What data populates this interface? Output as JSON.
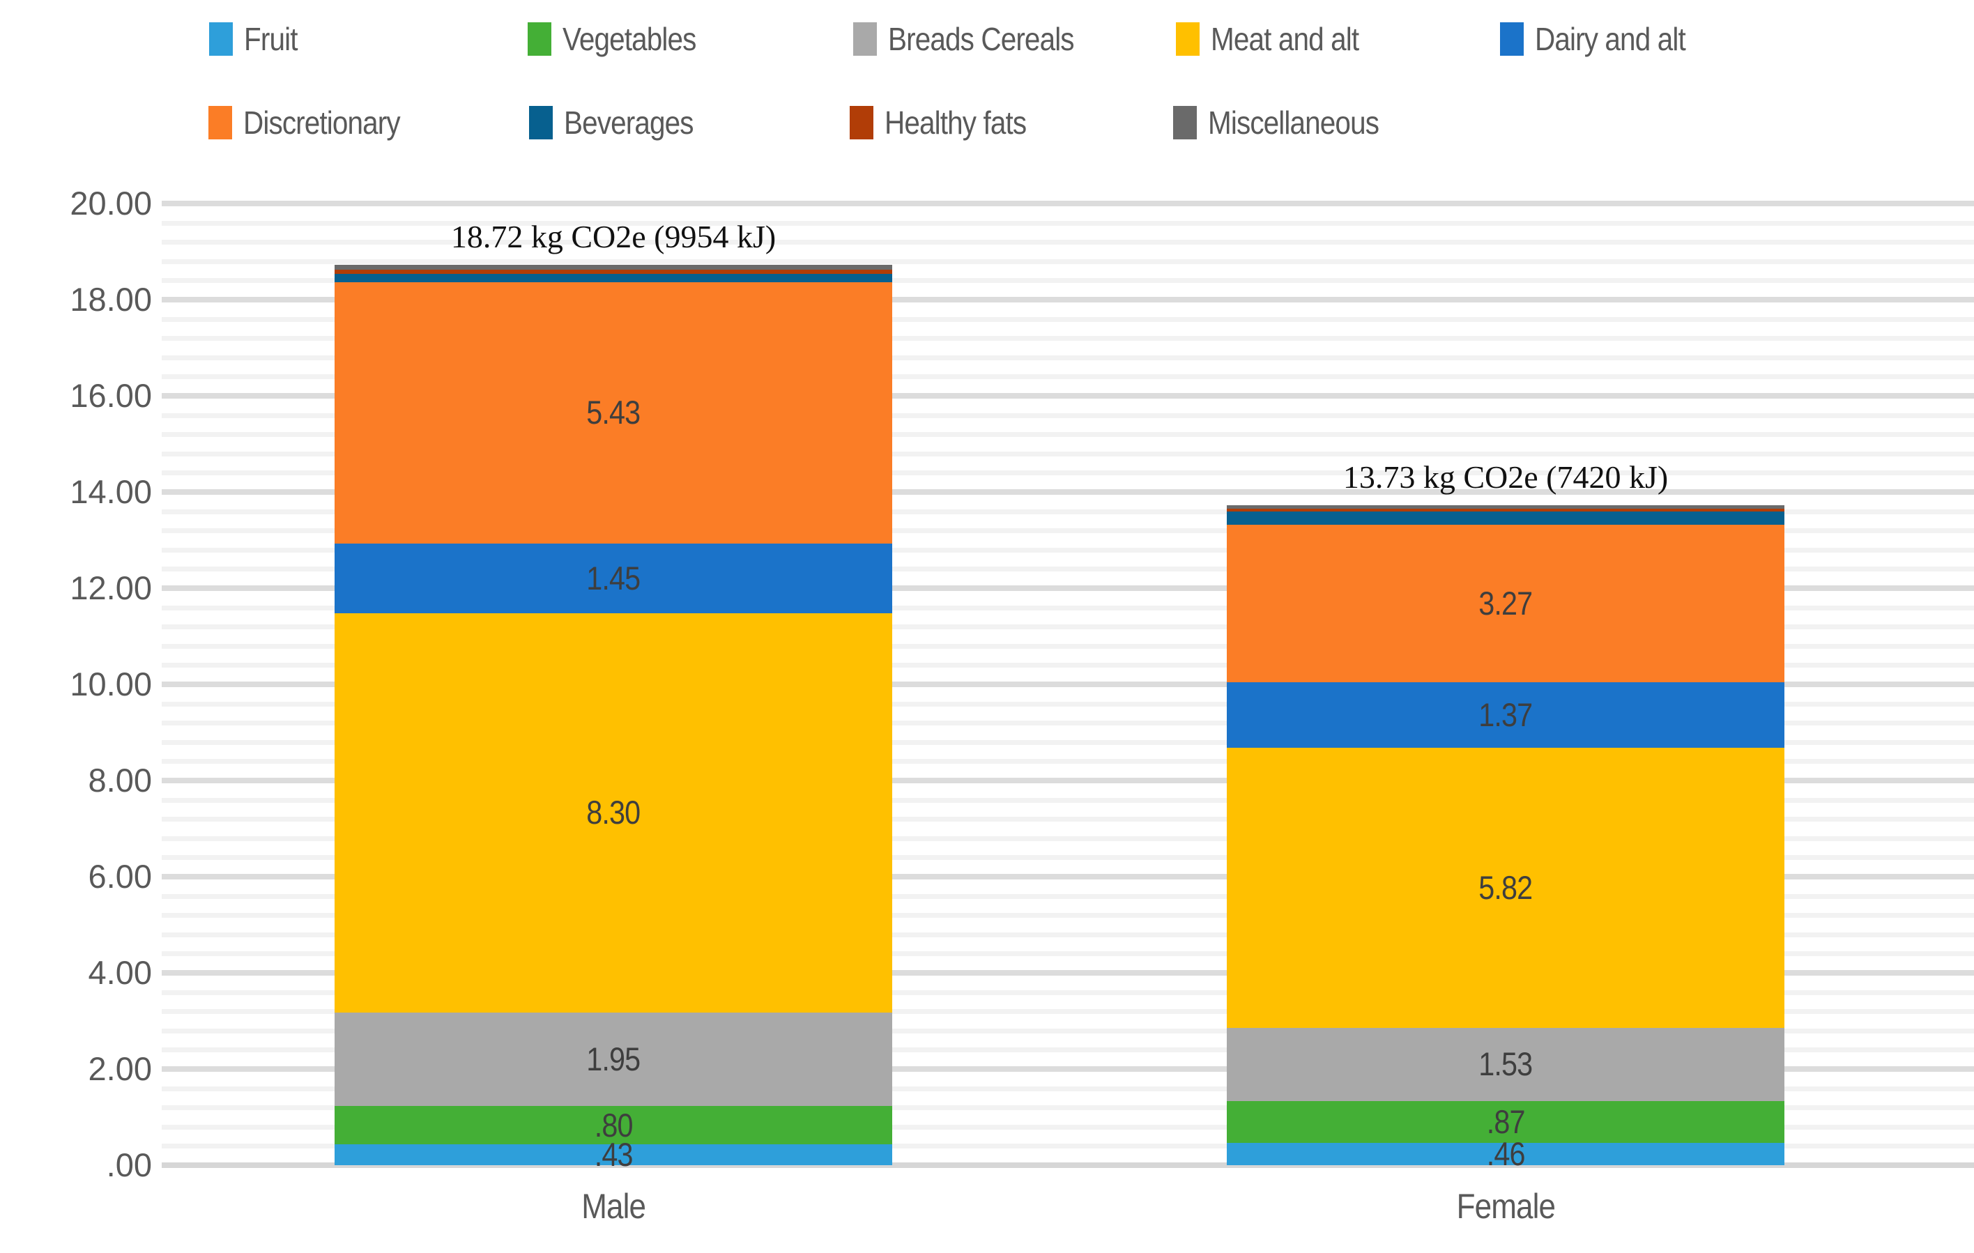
{
  "chart_data": {
    "type": "bar",
    "stacked": true,
    "unit": "kg CO2e",
    "categories": [
      "Male",
      "Female"
    ],
    "series": [
      {
        "name": "Fruit",
        "color": "#2e9fda",
        "values": [
          0.43,
          0.46
        ],
        "labels": [
          ".43",
          ".46"
        ]
      },
      {
        "name": "Vegetables",
        "color": "#44af36",
        "values": [
          0.8,
          0.87
        ],
        "labels": [
          ".80",
          ".87"
        ]
      },
      {
        "name": "Breads Cereals",
        "color": "#a9a9a9",
        "values": [
          1.95,
          1.53
        ],
        "labels": [
          "1.95",
          "1.53"
        ]
      },
      {
        "name": "Meat and alt",
        "color": "#ffc000",
        "values": [
          8.3,
          5.82
        ],
        "labels": [
          "8.30",
          "5.82"
        ]
      },
      {
        "name": "Dairy and alt",
        "color": "#1b73c9",
        "values": [
          1.45,
          1.37
        ],
        "labels": [
          "1.45",
          "1.37"
        ]
      },
      {
        "name": "Discretionary",
        "color": "#fb7d26",
        "values": [
          5.43,
          3.27
        ],
        "labels": [
          "5.43",
          "3.27"
        ]
      },
      {
        "name": "Beverages",
        "color": "#07608f",
        "values": [
          0.17,
          0.28
        ],
        "labels": [
          "",
          ""
        ]
      },
      {
        "name": "Healthy fats",
        "color": "#b13d07",
        "values": [
          0.09,
          0.05
        ],
        "labels": [
          "",
          ""
        ]
      },
      {
        "name": "Miscellaneous",
        "color": "#6a6a6a",
        "values": [
          0.1,
          0.08
        ],
        "labels": [
          "",
          ""
        ]
      }
    ],
    "totals": [
      18.72,
      13.73
    ],
    "bar_annotations": [
      "18.72 kg CO2e (9954 kJ)",
      "13.73 kg CO2e (7420 kJ)"
    ],
    "y_axis": {
      "tick_labels": [
        "20.00",
        "18.00",
        "16.00",
        "14.00",
        "12.00",
        "10.00",
        "8.00",
        "6.00",
        "4.00",
        "2.00",
        ".00"
      ],
      "min": 0,
      "max": 20,
      "major_step": 2,
      "minor_step": 0.4,
      "grid": true
    },
    "legend_position": "top"
  }
}
